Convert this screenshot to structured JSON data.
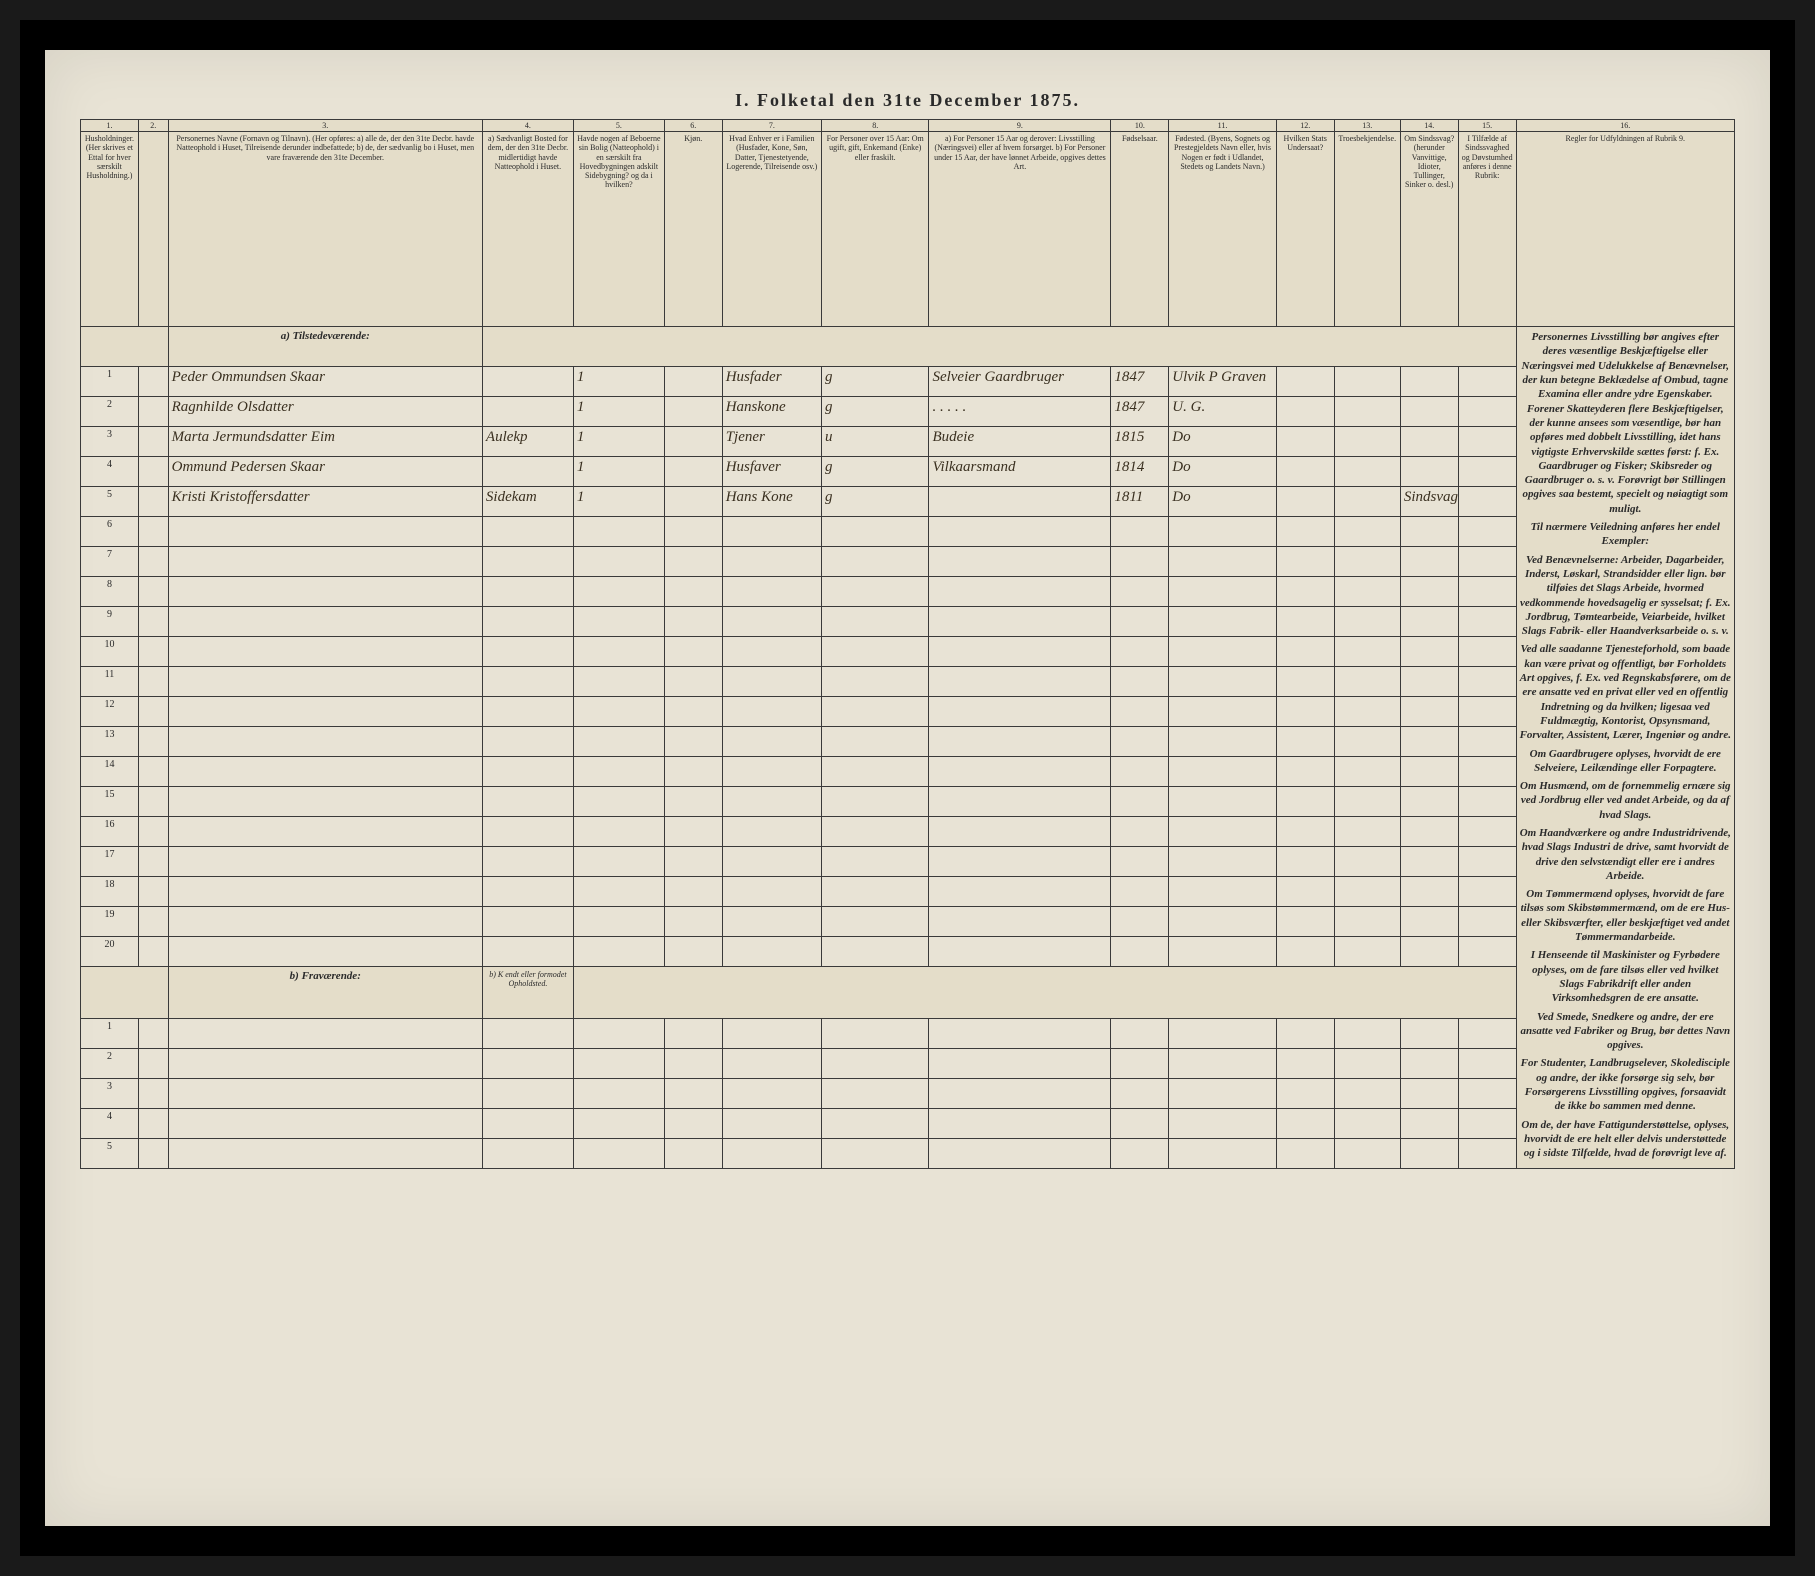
{
  "title": "I. Folketal den 31te December 1875.",
  "columns": {
    "numbers": [
      "1.",
      "2.",
      "3.",
      "4.",
      "5.",
      "6.",
      "7.",
      "8.",
      "9.",
      "10.",
      "11.",
      "12.",
      "13.",
      "14.",
      "15.",
      "16."
    ],
    "widths_pct": [
      3.5,
      1.8,
      19,
      5.5,
      5.5,
      3.5,
      6,
      6.5,
      11,
      3.5,
      6.5,
      3.5,
      4,
      3.5,
      3.5,
      13.2
    ],
    "headers": [
      "Husholdninger. (Her skrives et Ettal for hver særskilt Husholdning.)",
      "",
      "Personernes Navne (Fornavn og Tilnavn).\n(Her opføres:\na) alle de, der den 31te Decbr. havde Natteophold i Huset, Tilreisende derunder indbefattede;\nb) de, der sædvanlig bo i Huset, men vare fraværende den 31te December.",
      "a) Sædvanligt Bosted for dem, der den 31te Decbr. midlertidigt havde Natteophold i Huset.",
      "Havde nogen af Beboerne sin Bolig (Natteophold) i en særskilt fra Hovedbygningen adskilt Sidebygning? og da i hvilken?",
      "Kjøn.",
      "Hvad Enhver er i Familien (Husfader, Kone, Søn, Datter, Tjenestetyende, Logerende, Tilreisende osv.)",
      "For Personer over 15 Aar: Om ugift, gift, Enkemand (Enke) eller fraskilt.",
      "a) For Personer 15 Aar og derover: Livsstilling (Næringsvei) eller af hvem forsørget.\nb) For Personer under 15 Aar, der have lønnet Arbeide, opgives dettes Art.",
      "Fødselsaar.",
      "Fødested. (Byens, Sognets og Prestegjeldets Navn eller, hvis Nogen er født i Udlandet, Stedets og Landets Navn.)",
      "Hvilken Stats Undersaat?",
      "Troesbekjendelse.",
      "Om Sindssvag? (herunder Vanvittige, Idioter, Tullinger, Sinker o. desl.)",
      "I Tilfælde af Sindssvaghed og Døvstumhed anføres i denne Rubrik:",
      "Regler for Udfyldningen af Rubrik 9."
    ]
  },
  "sections": {
    "present": "a) Tilstedeværende:",
    "absent": "b) Fraværende:",
    "absent_col4": "b) K endt eller formodet Opholdsted."
  },
  "rows_present": [
    {
      "n": "1",
      "name": "Peder Ommundsen Skaar",
      "c4": "",
      "c5": "1",
      "c6": "",
      "c7": "Husfader",
      "c8": "g",
      "c9": "Selveier Gaardbruger",
      "c10": "1847",
      "c11": "Ulvik P Graven",
      "c12": "",
      "c13": "",
      "c14": "",
      "c15": ""
    },
    {
      "n": "2",
      "name": "Ragnhilde Olsdatter",
      "c4": "",
      "c5": "1",
      "c6": "",
      "c7": "Hanskone",
      "c8": "g",
      "c9": ". . . . .",
      "c10": "1847",
      "c11": "U. G.",
      "c12": "",
      "c13": "",
      "c14": "",
      "c15": ""
    },
    {
      "n": "3",
      "name": "Marta Jermundsdatter Eim",
      "c4": "Aulekp",
      "c5": "1",
      "c6": "",
      "c7": "Tjener",
      "c8": "u",
      "c9": "Budeie",
      "c10": "1815",
      "c11": "Do",
      "c12": "",
      "c13": "",
      "c14": "",
      "c15": ""
    },
    {
      "n": "4",
      "name": "Ommund Pedersen Skaar",
      "c4": "",
      "c5": "1",
      "c6": "",
      "c7": "Husfaver",
      "c8": "g",
      "c9": "Vilkaarsmand",
      "c10": "1814",
      "c11": "Do",
      "c12": "",
      "c13": "",
      "c14": "",
      "c15": ""
    },
    {
      "n": "5",
      "name": "Kristi Kristoffersdatter",
      "c4": "Sidekam",
      "c5": "1",
      "c6": "",
      "c7": "Hans Kone",
      "c8": "g",
      "c9": "",
      "c10": "1811",
      "c11": "Do",
      "c12": "",
      "c13": "",
      "c14": "Sindsvag efter",
      "c15": ""
    }
  ],
  "empty_present_count": 15,
  "empty_absent_count": 5,
  "instructions": [
    "Personernes Livsstilling bør angives efter deres væsentlige Beskjæftigelse eller Næringsvei med Udelukkelse af Benævnelser, der kun betegne Beklædelse af Ombud, tagne Examina eller andre ydre Egenskaber. Forener Skatteyderen flere Beskjæftigelser, der kunne ansees som væsentlige, bør han opføres med dobbelt Livsstilling, idet hans vigtigste Erhvervskilde sættes først: f. Ex. Gaardbruger og Fisker; Skibsreder og Gaardbruger o. s. v. Forøvrigt bør Stillingen opgives saa bestemt, specielt og nøiagtigt som muligt.",
    "Til nærmere Veiledning anføres her endel Exempler:",
    "Ved Benævnelserne: Arbeider, Dagarbeider, Inderst, Løskarl, Strandsidder eller lign. bør tilføies det Slags Arbeide, hvormed vedkommende hovedsagelig er sysselsat; f. Ex. Jordbrug, Tømtearbeide, Veiarbeide, hvilket Slags Fabrik- eller Haandverksarbeide o. s. v.",
    "Ved alle saadanne Tjenesteforhold, som baade kan være privat og offentligt, bør Forholdets Art opgives, f. Ex. ved Regnskabsførere, om de ere ansatte ved en privat eller ved en offentlig Indretning og da hvilken; ligesaa ved Fuldmægtig, Kontorist, Opsynsmand, Forvalter, Assistent, Lærer, Ingeniør og andre.",
    "Om Gaardbrugere oplyses, hvorvidt de ere Selveiere, Leilændinge eller Forpagtere.",
    "Om Husmænd, om de fornemmelig ernære sig ved Jordbrug eller ved andet Arbeide, og da af hvad Slags.",
    "Om Haandværkere og andre Industridrivende, hvad Slags Industri de drive, samt hvorvidt de drive den selvstændigt eller ere i andres Arbeide.",
    "Om Tømmermænd oplyses, hvorvidt de fare tilsøs som Skibstømmermænd, om de ere Hus- eller Skibsværfter, eller beskjæftiget ved andet Tømmermandarbeide.",
    "I Henseende til Maskinister og Fyrbødere oplyses, om de fare tilsøs eller ved hvilket Slags Fabrikdrift eller anden Virksomhedsgren de ere ansatte.",
    "Ved Smede, Snedkere og andre, der ere ansatte ved Fabriker og Brug, bør dettes Navn opgives.",
    "For Studenter, Landbrugselever, Skoledisciple og andre, der ikke forsørge sig selv, bør Forsørgerens Livsstilling opgives, forsaavidt de ikke bo sammen med denne.",
    "Om de, der have Fattigunderstøttelse, oplyses, hvorvidt de ere helt eller delvis understøttede og i sidste Tilfælde, hvad de forøvrigt leve af."
  ],
  "colors": {
    "page_bg": "#e8e3d5",
    "header_bg": "#e4ddc9",
    "border": "#3a3a3a",
    "text": "#2a2a2a",
    "handwriting": "#3a3020",
    "frame": "#000000"
  }
}
